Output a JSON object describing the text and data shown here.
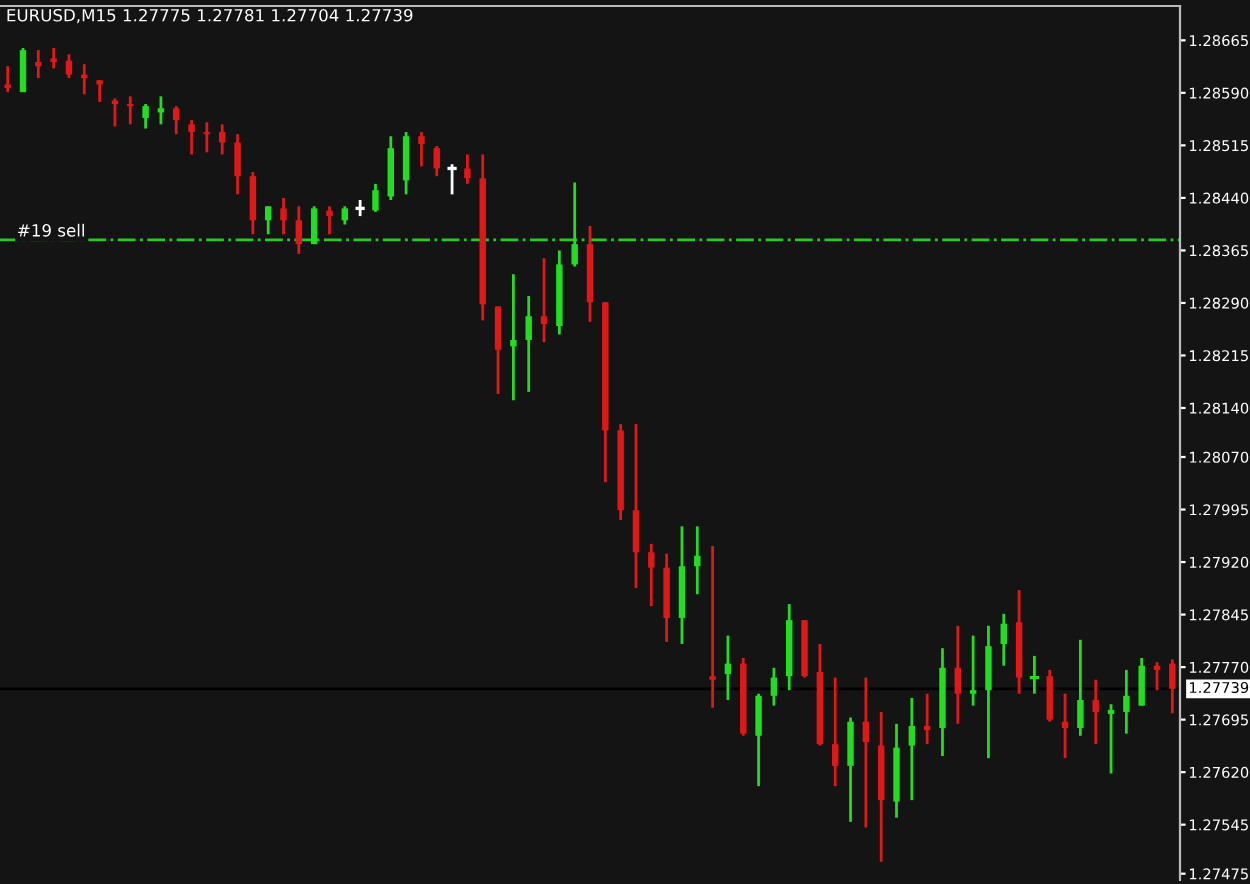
{
  "chart_data": {
    "type": "candlestick",
    "title": "EURUSD,M15 1.27775 1.27781 1.27704 1.27739",
    "categories": [
      null,
      null,
      null,
      null,
      null,
      null,
      null,
      null,
      null,
      null,
      null,
      null,
      null,
      null,
      null,
      null,
      null,
      null,
      null,
      null,
      null,
      null,
      null,
      null,
      null,
      null,
      null,
      null,
      null,
      null,
      null,
      null,
      null,
      null,
      null,
      null,
      null,
      null,
      null,
      null,
      null,
      null,
      null,
      null,
      null,
      null,
      null,
      null,
      null,
      null,
      null,
      null,
      null,
      null,
      null,
      null,
      null,
      null,
      null,
      null,
      null,
      null,
      null,
      null,
      null,
      null,
      null,
      null,
      null,
      null,
      null,
      null,
      null,
      null,
      null,
      null,
      null
    ],
    "ohlc": [
      [
        1.28602,
        1.28628,
        1.28591,
        1.28597
      ],
      [
        1.28591,
        1.28654,
        1.28591,
        1.28651
      ],
      [
        1.28634,
        1.28651,
        1.28611,
        1.28628
      ],
      [
        1.28639,
        1.28654,
        1.28625,
        1.28634
      ],
      [
        1.28636,
        1.28645,
        1.28611,
        1.28616
      ],
      [
        1.28616,
        1.28631,
        1.28588,
        1.28611
      ],
      [
        1.28608,
        1.28608,
        1.28577,
        1.28602
      ],
      [
        1.28579,
        1.28582,
        1.28542,
        1.28574
      ],
      [
        1.28574,
        1.28585,
        1.28545,
        1.28571
      ],
      [
        1.28554,
        1.28574,
        1.28539,
        1.28571
      ],
      [
        1.28562,
        1.28585,
        1.28545,
        1.28568
      ],
      [
        1.28568,
        1.28571,
        1.28531,
        1.28551
      ],
      [
        1.28545,
        1.28551,
        1.28502,
        1.28534
      ],
      [
        1.28534,
        1.28548,
        1.28505,
        1.28531
      ],
      [
        1.28534,
        1.28545,
        1.28502,
        1.28519
      ],
      [
        1.28519,
        1.28531,
        1.28445,
        1.28471
      ],
      [
        1.28471,
        1.28477,
        1.28388,
        1.28408
      ],
      [
        1.28408,
        1.28428,
        1.28388,
        1.28428
      ],
      [
        1.28425,
        1.2844,
        1.28388,
        1.28408
      ],
      [
        1.28408,
        1.28428,
        1.2836,
        1.28374
      ],
      [
        1.28374,
        1.28428,
        1.28374,
        1.28425
      ],
      [
        1.28422,
        1.28428,
        1.28388,
        1.28414
      ],
      [
        1.28408,
        1.28428,
        1.28402,
        1.28425
      ],
      [
        1.28425,
        1.28437,
        1.28414,
        1.28425
      ],
      [
        1.28422,
        1.2846,
        1.2842,
        1.28451
      ],
      [
        1.28442,
        1.28528,
        1.28437,
        1.28511
      ],
      [
        1.28465,
        1.28534,
        1.28445,
        1.28528
      ],
      [
        1.28528,
        1.28534,
        1.28485,
        1.28517
      ],
      [
        1.28511,
        1.28514,
        1.28471,
        1.28482
      ],
      [
        1.28482,
        1.28488,
        1.28445,
        1.28482
      ],
      [
        1.28482,
        1.28502,
        1.2846,
        1.28468
      ],
      [
        1.28468,
        1.28502,
        1.28265,
        1.28288
      ],
      [
        1.28285,
        1.28285,
        1.2816,
        1.28223
      ],
      [
        1.28228,
        1.28331,
        1.28151,
        1.28237
      ],
      [
        1.28237,
        1.283,
        1.28163,
        1.28271
      ],
      [
        1.28271,
        1.28354,
        1.28234,
        1.2826
      ],
      [
        1.28257,
        1.28365,
        1.28245,
        1.28345
      ],
      [
        1.28345,
        1.28462,
        1.28342,
        1.28374
      ],
      [
        1.28374,
        1.284,
        1.28263,
        1.28291
      ],
      [
        1.28291,
        1.28291,
        1.28034,
        1.28108
      ],
      [
        1.28108,
        1.28117,
        1.2798,
        1.27994
      ],
      [
        1.27994,
        1.28117,
        1.27883,
        1.27934
      ],
      [
        1.27934,
        1.27946,
        1.27857,
        1.27912
      ],
      [
        1.27912,
        1.27932,
        1.27806,
        1.2784
      ],
      [
        1.2784,
        1.27971,
        1.27803,
        1.27914
      ],
      [
        1.27914,
        1.27971,
        1.27874,
        1.27929
      ],
      [
        1.27757,
        1.27943,
        1.27712,
        1.27752
      ],
      [
        1.2776,
        1.27815,
        1.27723,
        1.27775
      ],
      [
        1.27775,
        1.27783,
        1.27672,
        1.27675
      ],
      [
        1.27672,
        1.27732,
        1.276,
        1.27729
      ],
      [
        1.27729,
        1.27769,
        1.27715,
        1.27755
      ],
      [
        1.27757,
        1.2786,
        1.27737,
        1.27837
      ],
      [
        1.27837,
        1.27837,
        1.27755,
        1.27757
      ],
      [
        1.27763,
        1.27803,
        1.27658,
        1.2766
      ],
      [
        1.2766,
        1.27755,
        1.276,
        1.27629
      ],
      [
        1.27629,
        1.27698,
        1.27549,
        1.27692
      ],
      [
        1.27692,
        1.27755,
        1.27541,
        1.27663
      ],
      [
        1.27658,
        1.27706,
        1.27492,
        1.2758
      ],
      [
        1.27578,
        1.27689,
        1.27555,
        1.27655
      ],
      [
        1.27658,
        1.27726,
        1.2758,
        1.27686
      ],
      [
        1.27686,
        1.27732,
        1.2766,
        1.2768
      ],
      [
        1.27683,
        1.27797,
        1.27643,
        1.27769
      ],
      [
        1.27769,
        1.27829,
        1.27689,
        1.27732
      ],
      [
        1.27732,
        1.27815,
        1.27715,
        1.27737
      ],
      [
        1.27737,
        1.27829,
        1.2764,
        1.278
      ],
      [
        1.27803,
        1.27846,
        1.27772,
        1.27832
      ],
      [
        1.27834,
        1.2788,
        1.27732,
        1.27755
      ],
      [
        1.27755,
        1.27786,
        1.27732,
        1.27755
      ],
      [
        1.27757,
        1.27766,
        1.27692,
        1.27695
      ],
      [
        1.27692,
        1.27732,
        1.2764,
        1.27683
      ],
      [
        1.27683,
        1.27809,
        1.27672,
        1.27723
      ],
      [
        1.27723,
        1.27752,
        1.2766,
        1.27706
      ],
      [
        1.27703,
        1.27717,
        1.27618,
        1.27709
      ],
      [
        1.27706,
        1.27766,
        1.27675,
        1.27729
      ],
      [
        1.27715,
        1.27783,
        1.27715,
        1.27772
      ],
      [
        1.27772,
        1.27777,
        1.27737,
        1.27766
      ],
      [
        1.27775,
        1.27781,
        1.27704,
        1.27739
      ]
    ],
    "colors": [
      "#e01818",
      "#22dd22",
      "#e01818",
      "#e01818",
      "#e01818",
      "#e01818",
      "#e01818",
      "#e01818",
      "#e01818",
      "#22dd22",
      "#22dd22",
      "#e01818",
      "#e01818",
      "#e01818",
      "#e01818",
      "#e01818",
      "#e01818",
      "#22dd22",
      "#e01818",
      "#e01818",
      "#22dd22",
      "#e01818",
      "#22dd22",
      "#ffffff",
      "#22dd22",
      "#22dd22",
      "#22dd22",
      "#e01818",
      "#e01818",
      "#ffffff",
      "#e01818",
      "#e01818",
      "#e01818",
      "#22dd22",
      "#22dd22",
      "#e01818",
      "#22dd22",
      "#22dd22",
      "#e01818",
      "#e01818",
      "#e01818",
      "#e01818",
      "#e01818",
      "#e01818",
      "#22dd22",
      "#22dd22",
      "#e01818",
      "#22dd22",
      "#e01818",
      "#22dd22",
      "#22dd22",
      "#22dd22",
      "#e01818",
      "#e01818",
      "#e01818",
      "#22dd22",
      "#e01818",
      "#e01818",
      "#22dd22",
      "#22dd22",
      "#e01818",
      "#22dd22",
      "#e01818",
      "#22dd22",
      "#22dd22",
      "#22dd22",
      "#e01818",
      "#22dd22",
      "#e01818",
      "#e01818",
      "#22dd22",
      "#e01818",
      "#22dd22",
      "#22dd22",
      "#22dd22",
      "#e01818",
      "#e01818"
    ],
    "ylim": [
      1.27466,
      1.28714
    ],
    "yticks": [
      1.28665,
      {
        "value": 1.2859,
        "label": "1.28590"
      },
      1.28515,
      {
        "value": 1.2844,
        "label": "1.28440"
      },
      1.28365,
      {
        "value": 1.2829,
        "label": "1.28290"
      },
      1.28215,
      {
        "value": 1.2814,
        "label": "1.28140"
      },
      {
        "value": 1.2807,
        "label": "1.28070"
      },
      1.27995,
      {
        "value": 1.2792,
        "label": "1.27920"
      },
      1.27845,
      {
        "value": 1.2777,
        "label": "1.27770"
      },
      1.27695,
      {
        "value": 1.2762,
        "label": "1.27620"
      },
      1.27545,
      1.27475
    ],
    "ref_lines": [
      {
        "axis": "y",
        "value": 1.2838,
        "label": "#19 sell",
        "color": "#22cc22",
        "line_style": "dashdot"
      },
      {
        "axis": "y",
        "value": 1.27739,
        "label": "1.27739",
        "color": "#000000",
        "line_style": "solid"
      }
    ],
    "grid": false,
    "legend": false
  }
}
